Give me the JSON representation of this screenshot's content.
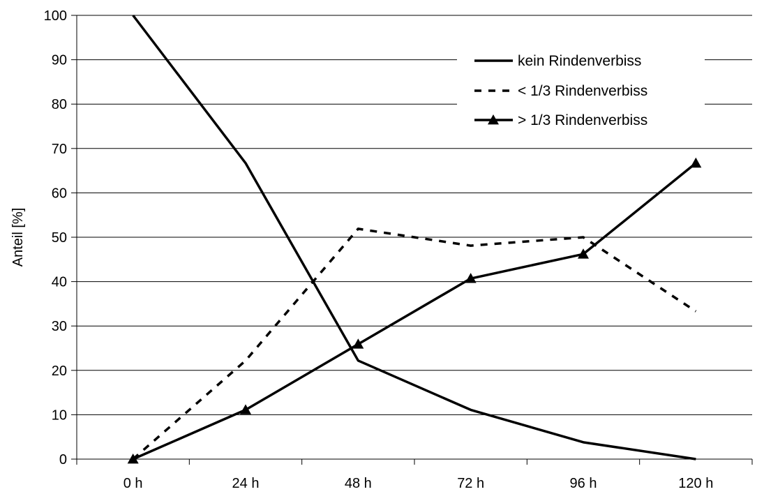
{
  "chart_data": {
    "type": "line",
    "title": "",
    "xlabel": "",
    "ylabel": "Anteil [%]",
    "categories": [
      "0 h",
      "24 h",
      "48 h",
      "72 h",
      "96 h",
      "120 h"
    ],
    "ylim": [
      0,
      100
    ],
    "yticks": [
      "0",
      "10",
      "20",
      "30",
      "40",
      "50",
      "60",
      "70",
      "80",
      "90",
      "100"
    ],
    "grid": "horizontal",
    "legend_position": "top-right",
    "series": [
      {
        "name": "kein Rindenverbiss",
        "values": [
          100,
          66.7,
          22.2,
          11.1,
          3.8,
          0
        ],
        "style": "solid",
        "marker": "none",
        "color": "#000000"
      },
      {
        "name": "< 1/3 Rindenverbiss",
        "values": [
          0,
          22.2,
          51.9,
          48.1,
          50.0,
          33.3
        ],
        "style": "dashed",
        "marker": "none",
        "color": "#000000"
      },
      {
        "name": "> 1/3 Rindenverbiss",
        "values": [
          0,
          11.1,
          25.9,
          40.7,
          46.2,
          66.7
        ],
        "style": "solid",
        "marker": "triangle",
        "color": "#000000"
      }
    ]
  }
}
